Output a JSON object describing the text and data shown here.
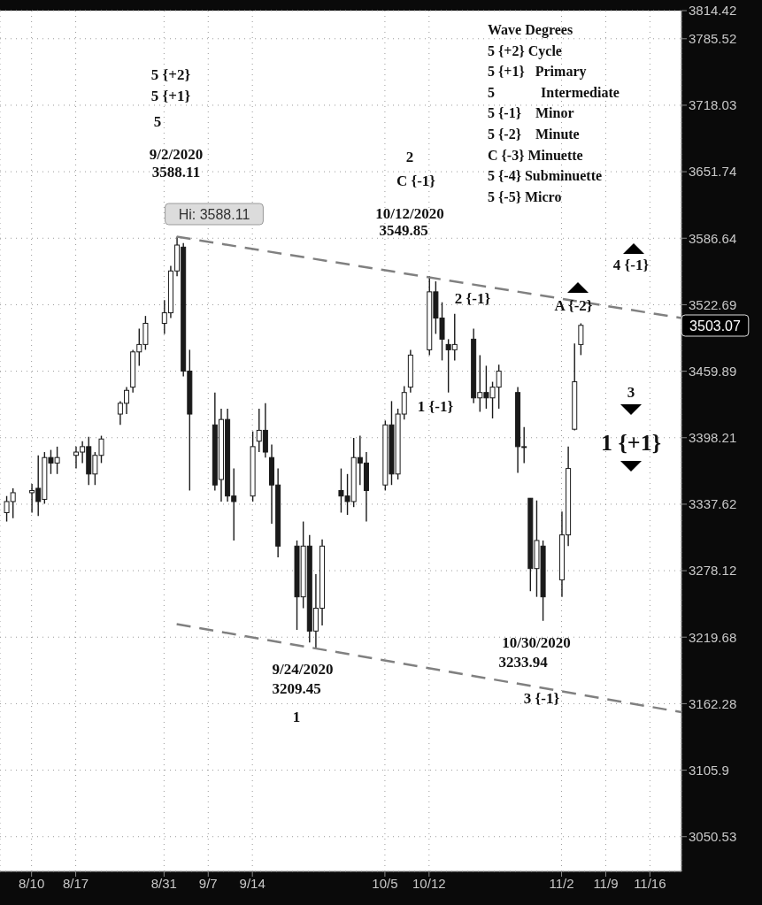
{
  "chart_data": {
    "type": "candlestick",
    "log": true,
    "grid": true,
    "color": "#1a1a1a",
    "x": [
      "2020-08-06",
      "2020-08-07",
      "2020-08-10",
      "2020-08-11",
      "2020-08-12",
      "2020-08-13",
      "2020-08-14",
      "2020-08-17",
      "2020-08-18",
      "2020-08-19",
      "2020-08-20",
      "2020-08-21",
      "2020-08-24",
      "2020-08-25",
      "2020-08-26",
      "2020-08-27",
      "2020-08-28",
      "2020-08-31",
      "2020-09-01",
      "2020-09-02",
      "2020-09-03",
      "2020-09-04",
      "2020-09-08",
      "2020-09-09",
      "2020-09-10",
      "2020-09-11",
      "2020-09-14",
      "2020-09-15",
      "2020-09-16",
      "2020-09-17",
      "2020-09-18",
      "2020-09-21",
      "2020-09-22",
      "2020-09-23",
      "2020-09-24",
      "2020-09-25",
      "2020-09-28",
      "2020-09-29",
      "2020-09-30",
      "2020-10-01",
      "2020-10-02",
      "2020-10-05",
      "2020-10-06",
      "2020-10-07",
      "2020-10-08",
      "2020-10-09",
      "2020-10-12",
      "2020-10-13",
      "2020-10-14",
      "2020-10-15",
      "2020-10-16",
      "2020-10-19",
      "2020-10-20",
      "2020-10-21",
      "2020-10-22",
      "2020-10-23",
      "2020-10-26",
      "2020-10-27",
      "2020-10-28",
      "2020-10-29",
      "2020-10-30",
      "2020-11-02",
      "2020-11-03",
      "2020-11-04",
      "2020-11-05"
    ],
    "ohlc": [
      [
        3330,
        3345,
        3322,
        3340
      ],
      [
        3340,
        3352,
        3325,
        3348
      ],
      [
        3348,
        3356,
        3330,
        3350
      ],
      [
        3352,
        3382,
        3327,
        3340
      ],
      [
        3342,
        3385,
        3338,
        3380
      ],
      [
        3380,
        3387,
        3365,
        3375
      ],
      [
        3375,
        3390,
        3365,
        3380
      ],
      [
        3382,
        3390,
        3370,
        3385
      ],
      [
        3385,
        3395,
        3375,
        3390
      ],
      [
        3390,
        3399,
        3355,
        3365
      ],
      [
        3365,
        3385,
        3355,
        3382
      ],
      [
        3382,
        3400,
        3375,
        3397
      ],
      [
        3420,
        3432,
        3410,
        3430
      ],
      [
        3430,
        3445,
        3420,
        3442
      ],
      [
        3445,
        3480,
        3440,
        3478
      ],
      [
        3478,
        3500,
        3465,
        3485
      ],
      [
        3485,
        3512,
        3480,
        3505
      ],
      [
        3505,
        3527,
        3495,
        3515
      ],
      [
        3515,
        3560,
        3510,
        3555
      ],
      [
        3555,
        3588.11,
        3550,
        3580
      ],
      [
        3578,
        3582,
        3455,
        3460
      ],
      [
        3460,
        3480,
        3350,
        3420
      ],
      [
        3410,
        3440,
        3350,
        3355
      ],
      [
        3360,
        3425,
        3340,
        3415
      ],
      [
        3415,
        3425,
        3340,
        3345
      ],
      [
        3345,
        3370,
        3305,
        3340
      ],
      [
        3345,
        3404,
        3340,
        3390
      ],
      [
        3395,
        3425,
        3385,
        3405
      ],
      [
        3405,
        3430,
        3380,
        3385
      ],
      [
        3380,
        3392,
        3320,
        3355
      ],
      [
        3355,
        3370,
        3290,
        3300
      ],
      [
        3300,
        3305,
        3226,
        3255
      ],
      [
        3255,
        3322,
        3245,
        3300
      ],
      [
        3300,
        3310,
        3215,
        3225
      ],
      [
        3225,
        3275,
        3209.45,
        3245
      ],
      [
        3245,
        3306,
        3230,
        3300
      ],
      [
        3350,
        3370,
        3330,
        3345
      ],
      [
        3345,
        3365,
        3328,
        3340
      ],
      [
        3340,
        3398,
        3335,
        3380
      ],
      [
        3380,
        3400,
        3355,
        3375
      ],
      [
        3375,
        3385,
        3322,
        3350
      ],
      [
        3355,
        3414,
        3350,
        3410
      ],
      [
        3410,
        3432,
        3355,
        3365
      ],
      [
        3365,
        3425,
        3360,
        3420
      ],
      [
        3420,
        3446,
        3415,
        3440
      ],
      [
        3445,
        3480,
        3440,
        3475
      ],
      [
        3480,
        3549.85,
        3475,
        3535
      ],
      [
        3535,
        3545,
        3495,
        3510
      ],
      [
        3510,
        3525,
        3470,
        3490
      ],
      [
        3485,
        3490,
        3440,
        3480
      ],
      [
        3480,
        3514,
        3470,
        3485
      ],
      [
        3490,
        3500,
        3430,
        3435
      ],
      [
        3435,
        3475,
        3422,
        3440
      ],
      [
        3440,
        3465,
        3425,
        3435
      ],
      [
        3435,
        3450,
        3416,
        3445
      ],
      [
        3445,
        3466,
        3425,
        3460
      ],
      [
        3440,
        3445,
        3366,
        3390
      ],
      [
        3390,
        3408,
        3375,
        3390
      ],
      [
        3343,
        3343,
        3260,
        3280
      ],
      [
        3280,
        3341,
        3255,
        3305
      ],
      [
        3300,
        3305,
        3233.94,
        3255
      ],
      [
        3270,
        3331,
        3255,
        3310
      ],
      [
        3310,
        3390,
        3300,
        3370
      ],
      [
        3406,
        3486,
        3405,
        3450
      ],
      [
        3485,
        3505,
        3475,
        3503.07
      ]
    ],
    "series": [
      {
        "type": "line",
        "color": "#808080",
        "line_style": "dashed",
        "x": [
          "2020-09-02",
          "2020-11-21"
        ],
        "values": [
          3588.11,
          3510
        ]
      },
      {
        "type": "line",
        "color": "#808080",
        "line_style": "dashed",
        "x": [
          "2020-09-02",
          "2020-11-21"
        ],
        "values": [
          3231,
          3155
        ]
      }
    ],
    "xlim": [
      "2020-08-05",
      "2020-11-21"
    ],
    "xticks": [
      {
        "value": "2020-08-10",
        "label": "8/10"
      },
      {
        "value": "2020-08-17",
        "label": "8/17"
      },
      {
        "value": "2020-08-31",
        "label": "8/31"
      },
      {
        "value": "2020-09-07",
        "label": "9/7"
      },
      {
        "value": "2020-09-14",
        "label": "9/14"
      },
      {
        "value": "2020-10-05",
        "label": "10/5"
      },
      {
        "value": "2020-10-12",
        "label": "10/12"
      },
      {
        "value": "2020-11-02",
        "label": "11/2"
      },
      {
        "value": "2020-11-09",
        "label": "11/9"
      },
      {
        "value": "2020-11-16",
        "label": "11/16"
      }
    ],
    "ylim": [
      3022,
      3814.42
    ],
    "yticks": [
      3050.53,
      3105.9,
      3162.28,
      3219.68,
      3278.12,
      3337.62,
      3398.21,
      3459.89,
      3522.69,
      3586.64,
      3651.74,
      3718.03,
      3785.52,
      3814.42
    ],
    "annotations": [
      "5 {+2}",
      "5 {+1}",
      "5",
      "9/2/2020",
      "3588.11",
      "Hi: 3588.11",
      "2",
      "C {-1}",
      "10/12/2020",
      "3549.85",
      "2 {-1}",
      "1 {-1}",
      "A {-2}",
      "4 {-1}",
      "3",
      "1 {+1}",
      "9/24/2020",
      "3209.45",
      "1",
      "10/30/2020",
      "3233.94",
      "3 {-1}",
      "3503.07",
      "Wave Degrees",
      "5 {+2} Cycle",
      "5 {+1}   Primary",
      "5             Intermediate",
      "5 {-1}    Minor",
      "5 {-2}    Minute",
      "C {-3} Minuette",
      "5 {-4} Subminuette",
      "5 {-5} Micro"
    ]
  }
}
